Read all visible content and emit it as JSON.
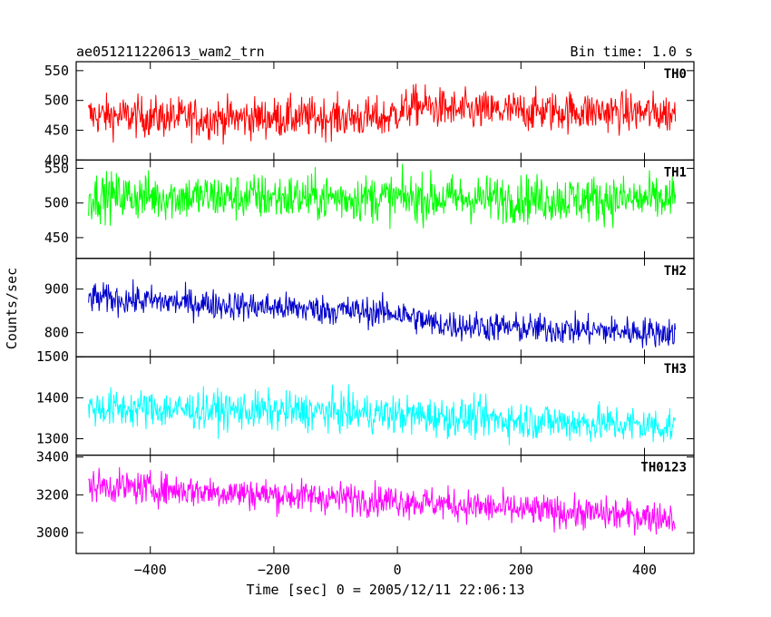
{
  "chart_data": {
    "type": "line",
    "title": "ae051211220613_wam2_trn",
    "bin_time": "Bin time: 1.0 s",
    "xlabel": "Time [sec] 0 = 2005/12/11 22:06:13",
    "ylabel": "Counts/sec",
    "xlim": [
      -520,
      480
    ],
    "x_range_data": [
      -500,
      450
    ],
    "x_ticks": [
      -400,
      -200,
      0,
      200,
      400
    ],
    "x_tick_labels": [
      "−400",
      "−200",
      "0",
      "200",
      "400"
    ],
    "panels": [
      {
        "name": "TH0",
        "color": "#ff0000",
        "ylim": [
          400,
          565
        ],
        "y_ticks": [
          400,
          450,
          500,
          550
        ],
        "y_tick_labels": [
          "400",
          "450",
          "500",
          "550"
        ],
        "trend": [
          [
            -500,
            475
          ],
          [
            -300,
            470
          ],
          [
            -100,
            472
          ],
          [
            -20,
            470
          ],
          [
            0,
            480
          ],
          [
            30,
            492
          ],
          [
            100,
            482
          ],
          [
            300,
            482
          ],
          [
            450,
            478
          ]
        ],
        "noise": 24
      },
      {
        "name": "TH1",
        "color": "#00ff00",
        "ylim": [
          420,
          562
        ],
        "y_ticks": [
          450,
          500,
          550
        ],
        "y_tick_labels": [
          "450",
          "500",
          "550"
        ],
        "trend": [
          [
            -500,
            510
          ],
          [
            0,
            507
          ],
          [
            450,
            505
          ]
        ],
        "noise": 24
      },
      {
        "name": "TH2",
        "color": "#0000cc",
        "ylim": [
          745,
          970
        ],
        "y_ticks": [
          800,
          900
        ],
        "y_tick_labels": [
          "800",
          "900"
        ],
        "trend": [
          [
            -500,
            880
          ],
          [
            -200,
            858
          ],
          [
            0,
            845
          ],
          [
            60,
            820
          ],
          [
            200,
            810
          ],
          [
            450,
            800
          ]
        ],
        "noise": 24
      },
      {
        "name": "TH3",
        "color": "#00ffff",
        "ylim": [
          1260,
          1500
        ],
        "y_ticks": [
          1300,
          1400,
          1500
        ],
        "y_tick_labels": [
          "1300",
          "1400",
          "1500"
        ],
        "trend": [
          [
            -500,
            1375
          ],
          [
            -100,
            1365
          ],
          [
            200,
            1345
          ],
          [
            450,
            1330
          ]
        ],
        "noise": 33
      },
      {
        "name": "TH0123",
        "color": "#ff00ff",
        "ylim": [
          2890,
          3410
        ],
        "y_ticks": [
          3000,
          3200,
          3400
        ],
        "y_tick_labels": [
          "3000",
          "3200",
          "3400"
        ],
        "trend": [
          [
            -500,
            3250
          ],
          [
            -200,
            3200
          ],
          [
            0,
            3170
          ],
          [
            200,
            3120
          ],
          [
            450,
            3080
          ]
        ],
        "noise": 60
      }
    ]
  }
}
